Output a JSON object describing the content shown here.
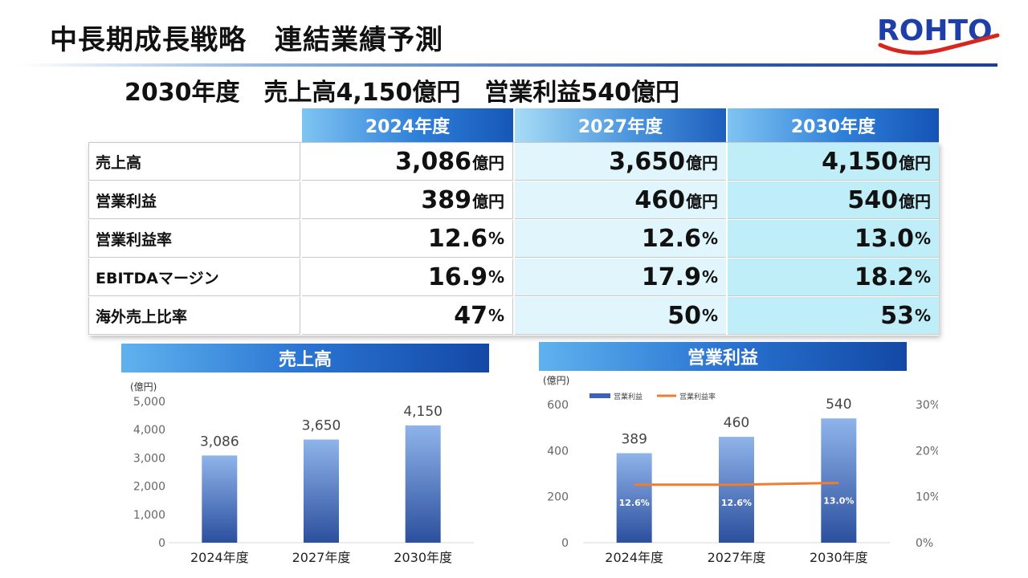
{
  "header": {
    "title": "中長期成長戦略　連結業績予測",
    "logo_text": "ROHTO"
  },
  "headline": "2030年度　売上高4,150億円　営業利益540億円",
  "table": {
    "columns": [
      "2024年度",
      "2027年度",
      "2030年度"
    ],
    "rows": [
      {
        "label": "売上高",
        "cells": [
          {
            "num": "3,086",
            "unit": "億円"
          },
          {
            "num": "3,650",
            "unit": "億円"
          },
          {
            "num": "4,150",
            "unit": "億円"
          }
        ]
      },
      {
        "label": "営業利益",
        "cells": [
          {
            "num": "389",
            "unit": "億円"
          },
          {
            "num": "460",
            "unit": "億円"
          },
          {
            "num": "540",
            "unit": "億円"
          }
        ]
      },
      {
        "label": "営業利益率",
        "cells": [
          {
            "num": "12.6",
            "unit": "%"
          },
          {
            "num": "12.6",
            "unit": "%"
          },
          {
            "num": "13.0",
            "unit": "%"
          }
        ]
      },
      {
        "label": "EBITDAマージン",
        "cells": [
          {
            "num": "16.9",
            "unit": "%"
          },
          {
            "num": "17.9",
            "unit": "%"
          },
          {
            "num": "18.2",
            "unit": "%"
          }
        ]
      },
      {
        "label": "海外売上比率",
        "cells": [
          {
            "num": "47",
            "unit": "%"
          },
          {
            "num": "50",
            "unit": "%"
          },
          {
            "num": "53",
            "unit": "%"
          }
        ]
      }
    ]
  },
  "sales_section": {
    "title": "売上高"
  },
  "profit_section": {
    "title": "営業利益"
  },
  "chart_data": [
    {
      "type": "bar",
      "title": "売上高",
      "categories": [
        "2024年度",
        "2027年度",
        "2030年度"
      ],
      "values": [
        3086,
        3650,
        4150
      ],
      "value_labels": [
        "3,086",
        "3,650",
        "4,150"
      ],
      "ylabel": "(億円)",
      "ylim": [
        0,
        5000
      ],
      "yticks": [
        "0",
        "1,000",
        "2,000",
        "3,000",
        "4,000",
        "5,000"
      ],
      "grid": false
    },
    {
      "type": "bar",
      "title": "営業利益",
      "categories": [
        "2024年度",
        "2027年度",
        "2030年度"
      ],
      "series": [
        {
          "name": "営業利益",
          "type": "bar",
          "axis": "left",
          "values": [
            389,
            460,
            540
          ],
          "labels": [
            "389",
            "460",
            "540"
          ]
        },
        {
          "name": "営業利益率",
          "type": "line",
          "axis": "right",
          "values": [
            12.6,
            12.6,
            13.0
          ],
          "labels": [
            "12.6%",
            "12.6%",
            "13.0%"
          ]
        }
      ],
      "ylabel": "(億円)",
      "ylim": [
        0,
        600
      ],
      "yticks": [
        "0",
        "200",
        "400",
        "600"
      ],
      "y2lim": [
        0,
        30
      ],
      "y2ticks": [
        "0%",
        "10%",
        "20%",
        "30%"
      ],
      "legend": "top-left",
      "colors": {
        "bar": "#3a62b8",
        "line": "#ed7d31"
      }
    }
  ]
}
